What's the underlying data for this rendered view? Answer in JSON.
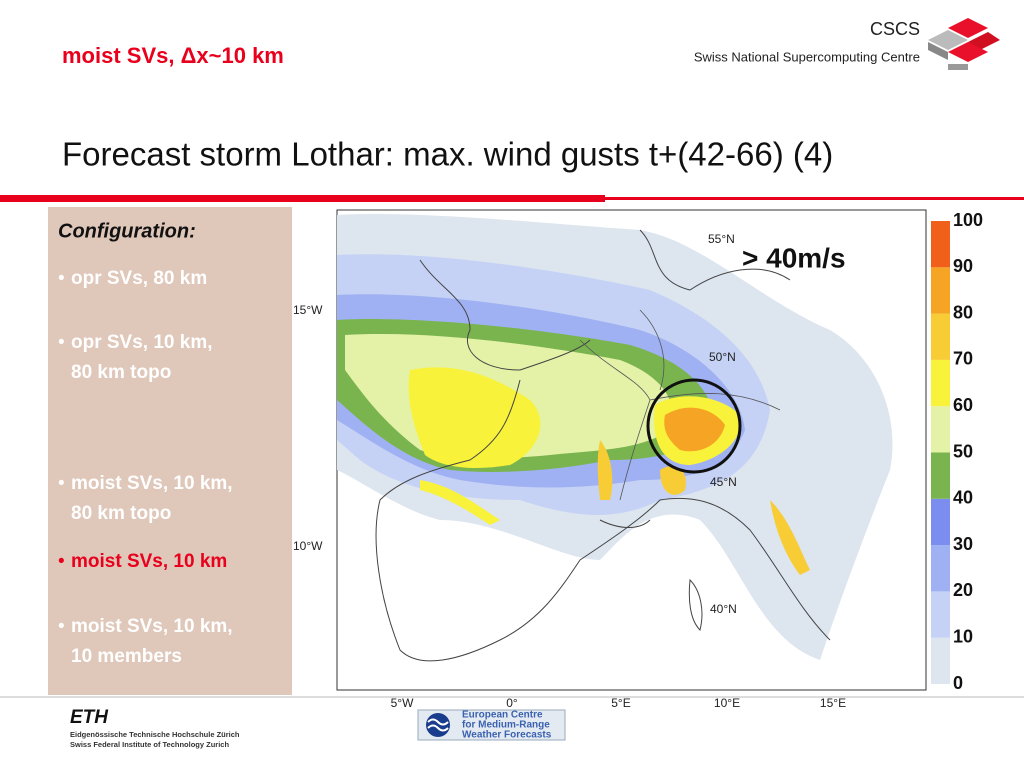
{
  "header": {
    "subtitle": "moist SVs, Δx~10 km",
    "org": "CSCS",
    "org_full": "Swiss National Supercomputing Centre",
    "title": "Forecast storm Lothar: max. wind gusts t+(42-66) (4)"
  },
  "sidebar": {
    "heading": "Configuration:",
    "active": 3,
    "items": [
      [
        "opr SVs, 80 km"
      ],
      [
        "opr SVs, 10 km,",
        "80 km topo"
      ],
      [
        "moist SVs, 10 km,",
        "80 km topo"
      ],
      [
        "moist SVs, 10 km"
      ],
      [
        "moist SVs, 10 km,",
        "10 members"
      ]
    ]
  },
  "map": {
    "lat_labels": [
      "55°N",
      "50°N",
      "45°N",
      "40°N"
    ],
    "lon_labels": [
      "5°W",
      "0°",
      "5°E",
      "10°E",
      "15°E"
    ],
    "edge_labels": [
      "15°W",
      "10°W"
    ],
    "annotation": "> 40m/s"
  },
  "colorbar": {
    "ticks": [
      0,
      10,
      20,
      30,
      40,
      50,
      60,
      70,
      80,
      90,
      100
    ],
    "colors": [
      "#dde5ef",
      "#c5d2f5",
      "#9fb1f2",
      "#7b8ef0",
      "#7ab44e",
      "#e4f2a8",
      "#f8f23a",
      "#f8cc34",
      "#f5a424",
      "#f0601a"
    ]
  },
  "footer": {
    "eth": "ETH",
    "eth_line1": "Eidgenössische Technische Hochschule Zürich",
    "eth_line2": "Swiss Federal Institute of Technology Zurich",
    "ecmwf": [
      "European Centre",
      "for Medium-Range",
      "Weather Forecasts"
    ]
  }
}
